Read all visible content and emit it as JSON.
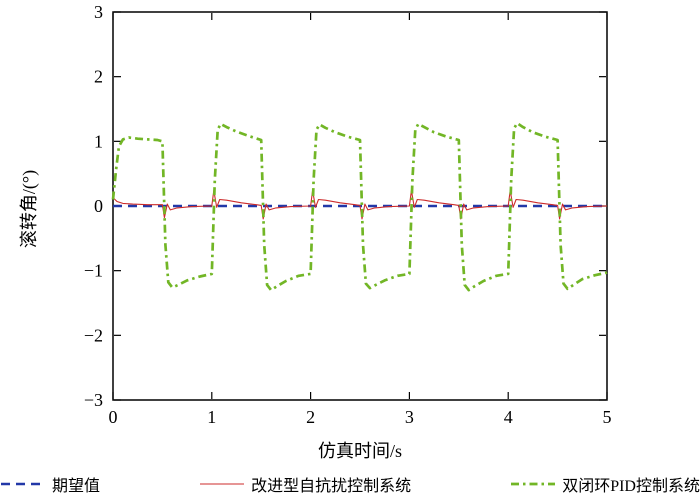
{
  "chart_data": {
    "type": "line",
    "title": "",
    "xlabel": "仿真时间/s",
    "ylabel": "滚转角/(°)",
    "xlim": [
      0,
      5
    ],
    "ylim": [
      -3,
      3
    ],
    "xticks": [
      0,
      1,
      2,
      3,
      4,
      5
    ],
    "yticks": [
      -3,
      -2,
      -1,
      0,
      1,
      2,
      3
    ],
    "grid": false,
    "legend_position": "bottom",
    "background": "#ffffff",
    "axis_color": "#000000",
    "series": [
      {
        "name": "期望值",
        "color": "#2238a8",
        "style": "dashed",
        "width": 2.4,
        "points": [
          [
            0,
            0
          ],
          [
            5,
            0
          ]
        ]
      },
      {
        "name": "改进型自抗扰控制系统",
        "color": "#cc2b2b",
        "style": "solid",
        "width": 1.1,
        "points": [
          [
            0,
            0.13
          ],
          [
            0.04,
            0.07
          ],
          [
            0.1,
            0.04
          ],
          [
            0.2,
            0.03
          ],
          [
            0.35,
            0.02
          ],
          [
            0.5,
            0.02
          ],
          [
            0.52,
            -0.18
          ],
          [
            0.55,
            0.03
          ],
          [
            0.58,
            -0.06
          ],
          [
            0.65,
            -0.03
          ],
          [
            0.8,
            -0.01
          ],
          [
            1.0,
            0.0
          ],
          [
            1.02,
            0.24
          ],
          [
            1.05,
            -0.02
          ],
          [
            1.08,
            0.1
          ],
          [
            1.15,
            0.09
          ],
          [
            1.3,
            0.05
          ],
          [
            1.45,
            0.02
          ],
          [
            1.5,
            0.01
          ],
          [
            1.52,
            -0.2
          ],
          [
            1.55,
            0.03
          ],
          [
            1.58,
            -0.06
          ],
          [
            1.65,
            -0.03
          ],
          [
            1.8,
            -0.01
          ],
          [
            2.0,
            0.0
          ],
          [
            2.02,
            0.24
          ],
          [
            2.05,
            -0.02
          ],
          [
            2.08,
            0.1
          ],
          [
            2.15,
            0.09
          ],
          [
            2.3,
            0.05
          ],
          [
            2.45,
            0.02
          ],
          [
            2.5,
            0.01
          ],
          [
            2.52,
            -0.2
          ],
          [
            2.55,
            0.03
          ],
          [
            2.58,
            -0.06
          ],
          [
            2.65,
            -0.03
          ],
          [
            2.8,
            -0.01
          ],
          [
            3.0,
            0.0
          ],
          [
            3.02,
            0.24
          ],
          [
            3.05,
            -0.02
          ],
          [
            3.08,
            0.1
          ],
          [
            3.15,
            0.09
          ],
          [
            3.3,
            0.05
          ],
          [
            3.45,
            0.02
          ],
          [
            3.5,
            0.01
          ],
          [
            3.52,
            -0.2
          ],
          [
            3.55,
            0.03
          ],
          [
            3.58,
            -0.06
          ],
          [
            3.65,
            -0.03
          ],
          [
            3.8,
            -0.01
          ],
          [
            4.0,
            0.0
          ],
          [
            4.02,
            0.24
          ],
          [
            4.05,
            -0.02
          ],
          [
            4.08,
            0.1
          ],
          [
            4.15,
            0.09
          ],
          [
            4.3,
            0.05
          ],
          [
            4.45,
            0.02
          ],
          [
            4.5,
            0.01
          ],
          [
            4.52,
            -0.2
          ],
          [
            4.55,
            0.03
          ],
          [
            4.58,
            -0.06
          ],
          [
            4.65,
            -0.03
          ],
          [
            4.8,
            -0.01
          ],
          [
            5.0,
            0.0
          ]
        ]
      },
      {
        "name": "双闭环PID控制系统",
        "color": "#72b626",
        "style": "dashdot",
        "width": 2.7,
        "points": [
          [
            0,
            0.1
          ],
          [
            0.03,
            0.55
          ],
          [
            0.06,
            0.92
          ],
          [
            0.1,
            1.03
          ],
          [
            0.16,
            1.06
          ],
          [
            0.25,
            1.04
          ],
          [
            0.35,
            1.03
          ],
          [
            0.45,
            1.02
          ],
          [
            0.5,
            1.0
          ],
          [
            0.53,
            -0.6
          ],
          [
            0.56,
            -1.18
          ],
          [
            0.6,
            -1.26
          ],
          [
            0.66,
            -1.22
          ],
          [
            0.75,
            -1.15
          ],
          [
            0.88,
            -1.09
          ],
          [
            1.0,
            -1.05
          ],
          [
            1.03,
            0.4
          ],
          [
            1.06,
            1.18
          ],
          [
            1.09,
            1.27
          ],
          [
            1.15,
            1.22
          ],
          [
            1.25,
            1.15
          ],
          [
            1.38,
            1.08
          ],
          [
            1.5,
            1.02
          ],
          [
            1.53,
            -0.6
          ],
          [
            1.56,
            -1.22
          ],
          [
            1.6,
            -1.3
          ],
          [
            1.66,
            -1.24
          ],
          [
            1.75,
            -1.16
          ],
          [
            1.88,
            -1.08
          ],
          [
            2.0,
            -1.05
          ],
          [
            2.03,
            0.4
          ],
          [
            2.06,
            1.18
          ],
          [
            2.09,
            1.26
          ],
          [
            2.15,
            1.21
          ],
          [
            2.25,
            1.14
          ],
          [
            2.38,
            1.07
          ],
          [
            2.5,
            1.02
          ],
          [
            2.53,
            -0.6
          ],
          [
            2.56,
            -1.2
          ],
          [
            2.6,
            -1.27
          ],
          [
            2.66,
            -1.22
          ],
          [
            2.75,
            -1.15
          ],
          [
            2.88,
            -1.08
          ],
          [
            3.0,
            -1.05
          ],
          [
            3.03,
            0.4
          ],
          [
            3.06,
            1.18
          ],
          [
            3.09,
            1.27
          ],
          [
            3.15,
            1.22
          ],
          [
            3.25,
            1.14
          ],
          [
            3.38,
            1.07
          ],
          [
            3.5,
            1.02
          ],
          [
            3.53,
            -0.6
          ],
          [
            3.56,
            -1.22
          ],
          [
            3.6,
            -1.3
          ],
          [
            3.66,
            -1.24
          ],
          [
            3.75,
            -1.16
          ],
          [
            3.88,
            -1.08
          ],
          [
            4.0,
            -1.05
          ],
          [
            4.03,
            0.4
          ],
          [
            4.06,
            1.2
          ],
          [
            4.09,
            1.28
          ],
          [
            4.15,
            1.22
          ],
          [
            4.25,
            1.14
          ],
          [
            4.38,
            1.07
          ],
          [
            4.5,
            1.02
          ],
          [
            4.53,
            -0.6
          ],
          [
            4.56,
            -1.2
          ],
          [
            4.6,
            -1.28
          ],
          [
            4.66,
            -1.22
          ],
          [
            4.75,
            -1.13
          ],
          [
            4.88,
            -1.07
          ],
          [
            5.0,
            -1.03
          ]
        ]
      }
    ]
  }
}
